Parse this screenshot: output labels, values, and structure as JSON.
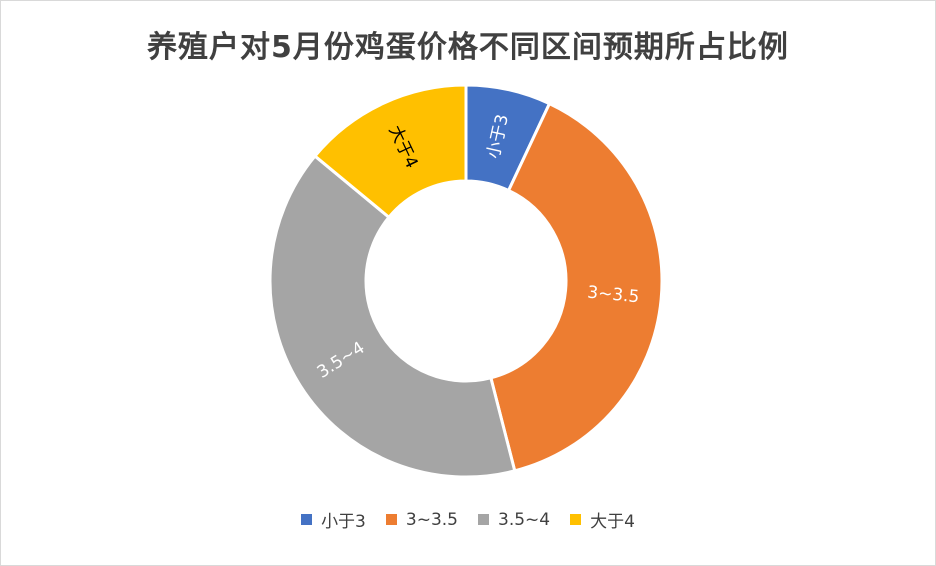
{
  "chart_data": {
    "type": "pie",
    "variant": "doughnut",
    "title": "养殖户对5月份鸡蛋价格不同区间预期所占比例",
    "categories": [
      "小于3",
      "3~3.5",
      "3.5~4",
      "大于4"
    ],
    "values": [
      0.07,
      0.39,
      0.4,
      0.14
    ],
    "colors": [
      "#4472C4",
      "#ED7D31",
      "#A5A5A5",
      "#FFC000"
    ],
    "legend_position": "bottom",
    "data_labels": "category name"
  }
}
